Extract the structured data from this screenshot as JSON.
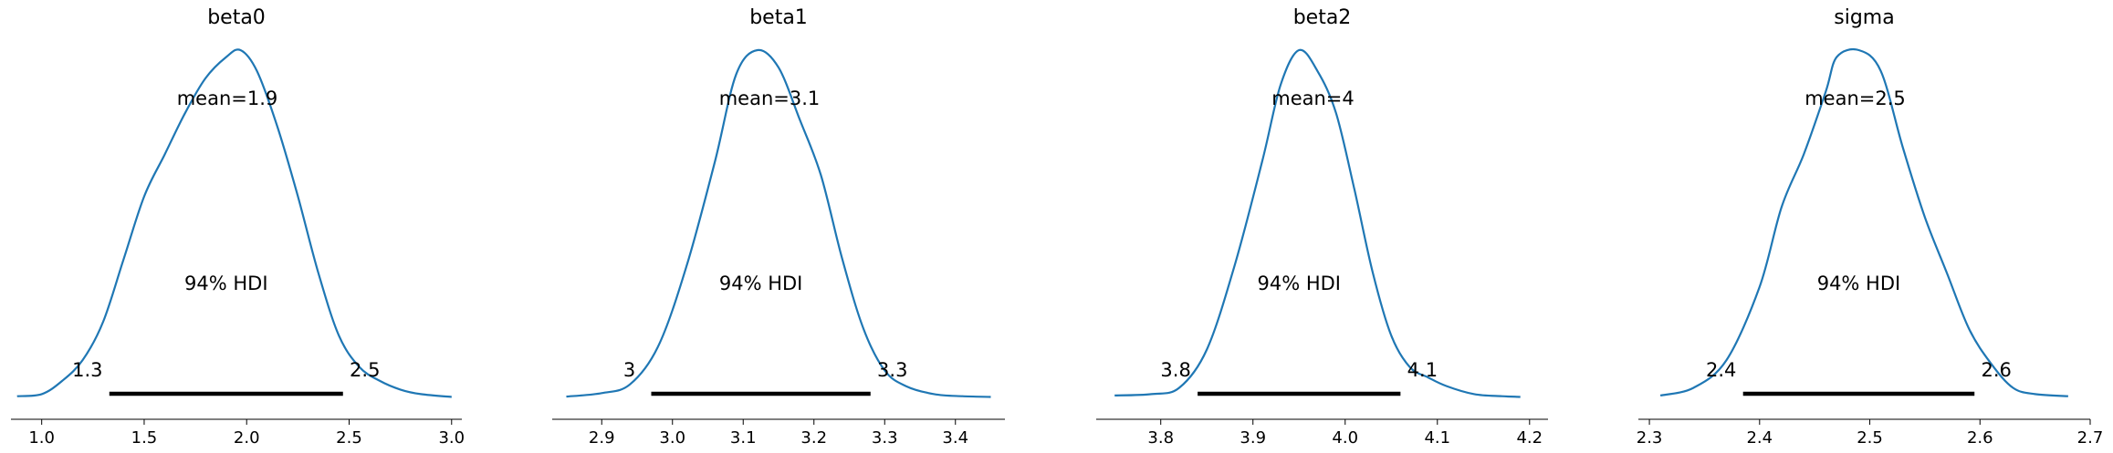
{
  "figure": {
    "kind": "posterior plot"
  },
  "chart_data": [
    {
      "type": "area",
      "title": "beta0",
      "mean_label": "mean=1.9",
      "hdi_label": "94% HDI",
      "hdi": [
        1.33,
        2.47
      ],
      "hdi_tick_labels": [
        "1.3",
        "2.5"
      ],
      "xlim": [
        0.85,
        3.05
      ],
      "xticks": [
        1.0,
        1.5,
        2.0,
        2.5,
        3.0
      ],
      "xtick_labels": [
        "1.0",
        "1.5",
        "2.0",
        "2.5",
        "3.0"
      ],
      "line_color": "#1f77b4",
      "hdi_color": "#000000",
      "x": [
        0.88,
        1.0,
        1.1,
        1.2,
        1.3,
        1.4,
        1.5,
        1.6,
        1.7,
        1.8,
        1.9,
        1.97,
        2.05,
        2.15,
        2.25,
        2.35,
        2.45,
        2.55,
        2.65,
        2.75,
        2.85,
        3.0
      ],
      "y": [
        0.006,
        0.012,
        0.05,
        0.11,
        0.22,
        0.4,
        0.58,
        0.7,
        0.82,
        0.92,
        0.98,
        1.0,
        0.94,
        0.78,
        0.58,
        0.36,
        0.18,
        0.09,
        0.05,
        0.025,
        0.012,
        0.004
      ]
    },
    {
      "type": "area",
      "title": "beta1",
      "mean_label": "mean=3.1",
      "hdi_label": "94% HDI",
      "hdi": [
        2.97,
        3.28
      ],
      "hdi_tick_labels": [
        "3",
        "3.3"
      ],
      "xlim": [
        2.83,
        3.47
      ],
      "xticks": [
        2.9,
        3.0,
        3.1,
        3.2,
        3.3,
        3.4
      ],
      "xtick_labels": [
        "2.9",
        "3.0",
        "3.1",
        "3.2",
        "3.3",
        "3.4"
      ],
      "line_color": "#1f77b4",
      "hdi_color": "#000000",
      "x": [
        2.85,
        2.9,
        2.94,
        2.98,
        3.02,
        3.06,
        3.09,
        3.12,
        3.15,
        3.18,
        3.21,
        3.24,
        3.27,
        3.3,
        3.33,
        3.37,
        3.41,
        3.45
      ],
      "y": [
        0.005,
        0.015,
        0.04,
        0.15,
        0.38,
        0.68,
        0.93,
        1.0,
        0.95,
        0.8,
        0.64,
        0.4,
        0.2,
        0.08,
        0.035,
        0.012,
        0.006,
        0.004
      ]
    },
    {
      "type": "area",
      "title": "beta2",
      "mean_label": "mean=4",
      "hdi_label": "94% HDI",
      "hdi": [
        3.84,
        4.06
      ],
      "hdi_tick_labels": [
        "3.8",
        "4.1"
      ],
      "xlim": [
        3.73,
        4.22
      ],
      "xticks": [
        3.8,
        3.9,
        4.0,
        4.1,
        4.2
      ],
      "xtick_labels": [
        "3.8",
        "3.9",
        "4.0",
        "4.1",
        "4.2"
      ],
      "line_color": "#1f77b4",
      "hdi_color": "#000000",
      "x": [
        3.75,
        3.79,
        3.82,
        3.85,
        3.88,
        3.91,
        3.93,
        3.95,
        3.97,
        3.99,
        4.01,
        4.03,
        4.05,
        4.07,
        4.09,
        4.11,
        4.14,
        4.17,
        4.19
      ],
      "y": [
        0.008,
        0.012,
        0.03,
        0.14,
        0.38,
        0.68,
        0.9,
        1.0,
        0.94,
        0.82,
        0.6,
        0.36,
        0.18,
        0.09,
        0.06,
        0.035,
        0.012,
        0.006,
        0.004
      ]
    },
    {
      "type": "area",
      "title": "sigma",
      "mean_label": "mean=2.5",
      "hdi_label": "94% HDI",
      "hdi": [
        2.385,
        2.595
      ],
      "hdi_tick_labels": [
        "2.4",
        "2.6"
      ],
      "xlim": [
        2.29,
        2.7
      ],
      "xticks": [
        2.3,
        2.4,
        2.5,
        2.6,
        2.7
      ],
      "xtick_labels": [
        "2.3",
        "2.4",
        "2.5",
        "2.6",
        "2.7"
      ],
      "line_color": "#1f77b4",
      "hdi_color": "#000000",
      "x": [
        2.31,
        2.34,
        2.37,
        2.4,
        2.42,
        2.44,
        2.46,
        2.47,
        2.49,
        2.51,
        2.53,
        2.55,
        2.57,
        2.59,
        2.61,
        2.63,
        2.65,
        2.68
      ],
      "y": [
        0.008,
        0.03,
        0.11,
        0.32,
        0.55,
        0.7,
        0.88,
        0.98,
        1.0,
        0.94,
        0.72,
        0.52,
        0.36,
        0.2,
        0.1,
        0.03,
        0.012,
        0.006
      ]
    }
  ]
}
